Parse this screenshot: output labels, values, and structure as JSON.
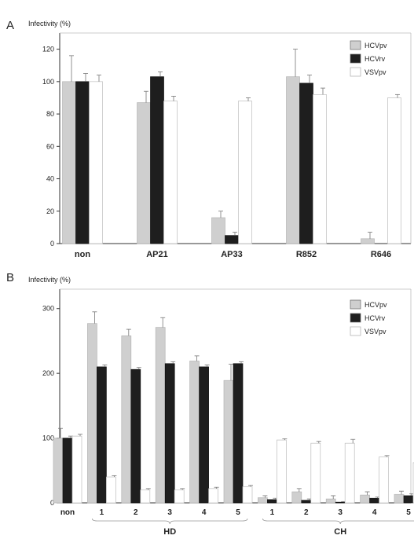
{
  "chart_data": [
    {
      "type": "bar",
      "panel": "A",
      "ylabel": "Infectivity (%)",
      "ylim": [
        0,
        130
      ],
      "yticks": [
        0,
        20,
        40,
        60,
        80,
        100,
        120
      ],
      "categories": [
        "non",
        "AP21",
        "AP33",
        "R852",
        "R646"
      ],
      "series": [
        {
          "name": "HCVpv",
          "color": "#cfcfcf",
          "values": [
            100,
            87,
            16,
            103,
            3
          ],
          "errors": [
            16,
            7,
            4,
            17,
            4
          ]
        },
        {
          "name": "HCVrv",
          "color": "#1e1e1e",
          "values": [
            100,
            103,
            5,
            99,
            0
          ],
          "errors": [
            5,
            3,
            2,
            5,
            0
          ]
        },
        {
          "name": "VSVpv",
          "color": "#ffffff",
          "values": [
            100,
            88,
            88,
            92,
            90
          ],
          "errors": [
            4,
            3,
            2,
            4,
            2
          ]
        }
      ],
      "legend": "top-right"
    },
    {
      "type": "bar",
      "panel": "B",
      "ylabel": "Infectivity (%)",
      "ylim": [
        0,
        330
      ],
      "yticks": [
        0,
        100,
        200,
        300
      ],
      "categories": [
        "non",
        "1",
        "2",
        "3",
        "4",
        "5",
        "1",
        "2",
        "3",
        "4",
        "5"
      ],
      "groups": [
        {
          "label": "HD",
          "from": 1,
          "to": 5
        },
        {
          "label": "CH",
          "from": 6,
          "to": 10
        }
      ],
      "series": [
        {
          "name": "HCVpv",
          "color": "#cfcfcf",
          "values": [
            100,
            277,
            258,
            271,
            219,
            189,
            8,
            17,
            6,
            12,
            13
          ],
          "errors": [
            15,
            18,
            10,
            15,
            8,
            25,
            3,
            5,
            5,
            5,
            5
          ]
        },
        {
          "name": "HCVrv",
          "color": "#1e1e1e",
          "values": [
            100,
            210,
            206,
            215,
            210,
            215,
            5,
            4,
            1,
            7,
            11
          ],
          "errors": [
            3,
            3,
            3,
            3,
            3,
            3,
            2,
            2,
            1,
            2,
            3
          ]
        },
        {
          "name": "VSVpv",
          "color": "#ffffff",
          "values": [
            103,
            40,
            20,
            20,
            22,
            25,
            97,
            92,
            92,
            71,
            62
          ],
          "errors": [
            3,
            2,
            2,
            2,
            2,
            2,
            2,
            3,
            6,
            2,
            3
          ]
        }
      ],
      "legend": "top-right"
    }
  ]
}
